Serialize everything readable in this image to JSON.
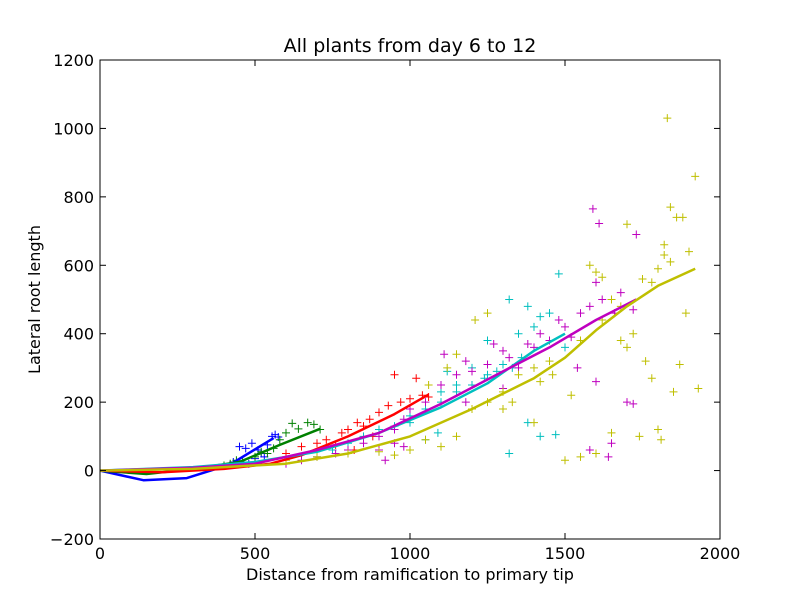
{
  "chart_data": {
    "type": "scatter",
    "title": "All plants from day 6 to 12",
    "xlabel": "Distance from ramification to primary tip",
    "ylabel": "Lateral root length",
    "xlim": [
      0,
      2000
    ],
    "ylim": [
      -200,
      1200
    ],
    "xticks": [
      0,
      500,
      1000,
      1500,
      2000
    ],
    "yticks": [
      -200,
      0,
      200,
      400,
      600,
      800,
      1000,
      1200
    ],
    "grid": false,
    "legend": "none",
    "series": [
      {
        "name": "blue",
        "color": "#0000ff",
        "points": [
          [
            430,
            25
          ],
          [
            450,
            70
          ],
          [
            470,
            65
          ],
          [
            490,
            80
          ],
          [
            500,
            35
          ],
          [
            510,
            60
          ],
          [
            520,
            50
          ],
          [
            540,
            75
          ],
          [
            555,
            100
          ],
          [
            565,
            105
          ],
          [
            575,
            98
          ],
          [
            480,
            20
          ],
          [
            530,
            40
          ]
        ],
        "line": [
          [
            0,
            0
          ],
          [
            140,
            -28
          ],
          [
            280,
            -22
          ],
          [
            420,
            18
          ],
          [
            560,
            95
          ]
        ]
      },
      {
        "name": "green",
        "color": "#008000",
        "points": [
          [
            400,
            15
          ],
          [
            420,
            20
          ],
          [
            440,
            30
          ],
          [
            460,
            25
          ],
          [
            500,
            40
          ],
          [
            520,
            55
          ],
          [
            560,
            65
          ],
          [
            580,
            90
          ],
          [
            600,
            110
          ],
          [
            620,
            138
          ],
          [
            640,
            122
          ],
          [
            670,
            140
          ],
          [
            690,
            135
          ],
          [
            710,
            120
          ],
          [
            540,
            50
          ]
        ],
        "line": [
          [
            0,
            0
          ],
          [
            150,
            -10
          ],
          [
            300,
            5
          ],
          [
            450,
            25
          ],
          [
            580,
            75
          ],
          [
            710,
            122
          ]
        ]
      },
      {
        "name": "red",
        "color": "#ff0000",
        "points": [
          [
            600,
            50
          ],
          [
            650,
            70
          ],
          [
            700,
            80
          ],
          [
            730,
            90
          ],
          [
            760,
            75
          ],
          [
            780,
            110
          ],
          [
            800,
            120
          ],
          [
            830,
            140
          ],
          [
            850,
            130
          ],
          [
            870,
            150
          ],
          [
            900,
            170
          ],
          [
            930,
            190
          ],
          [
            950,
            280
          ],
          [
            970,
            200
          ],
          [
            1000,
            210
          ],
          [
            1020,
            270
          ],
          [
            1040,
            220
          ],
          [
            1060,
            215
          ],
          [
            880,
            100
          ],
          [
            820,
            60
          ]
        ],
        "line": [
          [
            0,
            0
          ],
          [
            200,
            -5
          ],
          [
            400,
            5
          ],
          [
            550,
            20
          ],
          [
            650,
            45
          ],
          [
            800,
            100
          ],
          [
            950,
            165
          ],
          [
            1060,
            222
          ]
        ]
      },
      {
        "name": "cyan",
        "color": "#00bfbf",
        "points": [
          [
            700,
            40
          ],
          [
            750,
            60
          ],
          [
            800,
            80
          ],
          [
            850,
            100
          ],
          [
            900,
            120
          ],
          [
            950,
            130
          ],
          [
            1000,
            160
          ],
          [
            1050,
            180
          ],
          [
            1100,
            200
          ],
          [
            1150,
            230
          ],
          [
            1200,
            250
          ],
          [
            1250,
            280
          ],
          [
            1300,
            310
          ],
          [
            1320,
            500
          ],
          [
            1350,
            400
          ],
          [
            1380,
            480
          ],
          [
            1400,
            420
          ],
          [
            1420,
            450
          ],
          [
            1450,
            460
          ],
          [
            1480,
            575
          ],
          [
            1500,
            360
          ],
          [
            1380,
            140
          ],
          [
            1420,
            100
          ],
          [
            1470,
            105
          ],
          [
            1320,
            50
          ],
          [
            1100,
            230
          ],
          [
            1150,
            250
          ],
          [
            1240,
            270
          ],
          [
            1280,
            290
          ],
          [
            1330,
            300
          ],
          [
            1360,
            330
          ],
          [
            1250,
            380
          ],
          [
            1200,
            300
          ],
          [
            1090,
            110
          ],
          [
            1050,
            90
          ],
          [
            1000,
            140
          ],
          [
            1120,
            290
          ]
        ],
        "line": [
          [
            0,
            0
          ],
          [
            300,
            10
          ],
          [
            500,
            25
          ],
          [
            700,
            55
          ],
          [
            900,
            110
          ],
          [
            1100,
            185
          ],
          [
            1250,
            255
          ],
          [
            1400,
            350
          ],
          [
            1500,
            400
          ]
        ]
      },
      {
        "name": "magenta",
        "color": "#bf00bf",
        "points": [
          [
            600,
            20
          ],
          [
            650,
            30
          ],
          [
            700,
            40
          ],
          [
            760,
            50
          ],
          [
            800,
            60
          ],
          [
            850,
            80
          ],
          [
            900,
            100
          ],
          [
            950,
            120
          ],
          [
            980,
            150
          ],
          [
            1000,
            180
          ],
          [
            1050,
            200
          ],
          [
            1100,
            250
          ],
          [
            1110,
            340
          ],
          [
            1150,
            280
          ],
          [
            1180,
            320
          ],
          [
            1200,
            290
          ],
          [
            1250,
            310
          ],
          [
            1270,
            370
          ],
          [
            1300,
            350
          ],
          [
            1320,
            330
          ],
          [
            1350,
            300
          ],
          [
            1380,
            370
          ],
          [
            1400,
            360
          ],
          [
            1420,
            400
          ],
          [
            1450,
            380
          ],
          [
            1480,
            440
          ],
          [
            1500,
            420
          ],
          [
            1520,
            390
          ],
          [
            1550,
            460
          ],
          [
            1580,
            480
          ],
          [
            1600,
            550
          ],
          [
            1620,
            500
          ],
          [
            1590,
            765
          ],
          [
            1610,
            722
          ],
          [
            1660,
            460
          ],
          [
            1680,
            520
          ],
          [
            1700,
            200
          ],
          [
            1720,
            470
          ],
          [
            1730,
            690
          ],
          [
            1580,
            60
          ],
          [
            1640,
            40
          ],
          [
            1650,
            80
          ],
          [
            1600,
            260
          ],
          [
            1720,
            195
          ],
          [
            1540,
            300
          ],
          [
            950,
            80
          ],
          [
            980,
            70
          ],
          [
            920,
            30
          ],
          [
            900,
            60
          ],
          [
            1300,
            240
          ],
          [
            1180,
            200
          ]
        ],
        "line": [
          [
            0,
            0
          ],
          [
            300,
            8
          ],
          [
            500,
            20
          ],
          [
            700,
            60
          ],
          [
            900,
            110
          ],
          [
            1100,
            195
          ],
          [
            1300,
            290
          ],
          [
            1450,
            360
          ],
          [
            1600,
            440
          ],
          [
            1730,
            500
          ]
        ]
      },
      {
        "name": "yellow",
        "color": "#bfbf00",
        "points": [
          [
            600,
            30
          ],
          [
            700,
            40
          ],
          [
            800,
            50
          ],
          [
            900,
            55
          ],
          [
            950,
            45
          ],
          [
            1000,
            60
          ],
          [
            1050,
            90
          ],
          [
            1100,
            70
          ],
          [
            1150,
            100
          ],
          [
            1200,
            180
          ],
          [
            1250,
            200
          ],
          [
            1300,
            230
          ],
          [
            1350,
            280
          ],
          [
            1400,
            300
          ],
          [
            1450,
            320
          ],
          [
            1500,
            30
          ],
          [
            1520,
            220
          ],
          [
            1550,
            380
          ],
          [
            1580,
            600
          ],
          [
            1600,
            580
          ],
          [
            1620,
            565
          ],
          [
            1650,
            500
          ],
          [
            1680,
            480
          ],
          [
            1700,
            720
          ],
          [
            1720,
            400
          ],
          [
            1750,
            560
          ],
          [
            1780,
            550
          ],
          [
            1800,
            590
          ],
          [
            1820,
            630
          ],
          [
            1830,
            1030
          ],
          [
            1840,
            770
          ],
          [
            1860,
            740
          ],
          [
            1880,
            740
          ],
          [
            1900,
            640
          ],
          [
            1920,
            860
          ],
          [
            1930,
            240
          ],
          [
            1870,
            310
          ],
          [
            1850,
            230
          ],
          [
            1810,
            90
          ],
          [
            1800,
            120
          ],
          [
            1740,
            100
          ],
          [
            1760,
            320
          ],
          [
            1780,
            270
          ],
          [
            1650,
            110
          ],
          [
            1600,
            50
          ],
          [
            1550,
            40
          ],
          [
            1620,
            440
          ],
          [
            1680,
            380
          ],
          [
            1700,
            360
          ],
          [
            1820,
            660
          ],
          [
            1840,
            610
          ],
          [
            1890,
            460
          ],
          [
            1250,
            460
          ],
          [
            1210,
            440
          ],
          [
            1150,
            340
          ],
          [
            1120,
            300
          ],
          [
            1060,
            250
          ],
          [
            1300,
            180
          ],
          [
            1330,
            200
          ],
          [
            1400,
            140
          ],
          [
            1420,
            260
          ],
          [
            1460,
            280
          ]
        ],
        "line": [
          [
            0,
            0
          ],
          [
            300,
            5
          ],
          [
            600,
            20
          ],
          [
            800,
            50
          ],
          [
            1000,
            100
          ],
          [
            1200,
            180
          ],
          [
            1400,
            270
          ],
          [
            1500,
            330
          ],
          [
            1600,
            410
          ],
          [
            1700,
            480
          ],
          [
            1800,
            540
          ],
          [
            1920,
            590
          ]
        ]
      }
    ]
  }
}
